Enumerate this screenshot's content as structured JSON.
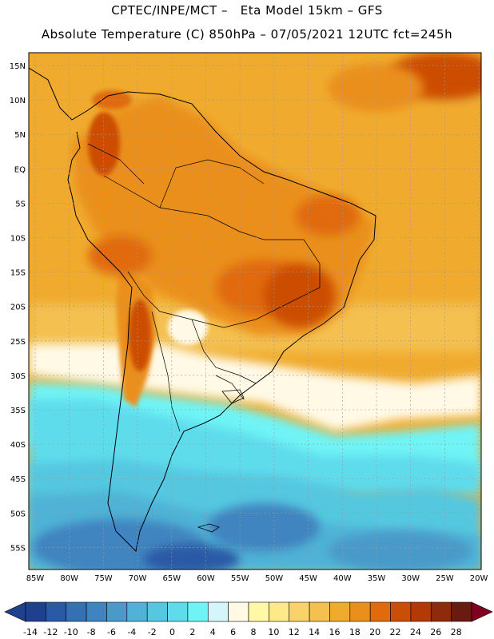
{
  "header": {
    "line1": "CPTEC/INPE/MCT –   Eta Model 15km – GFS",
    "line2": "Absolute Temperature (C) 850hPa – 07/05/2021 12UTC fct=245h"
  },
  "axes": {
    "lat_labels": [
      "15N",
      "10N",
      "5N",
      "EQ",
      "5S",
      "10S",
      "15S",
      "20S",
      "25S",
      "30S",
      "35S",
      "40S",
      "45S",
      "50S",
      "55S"
    ],
    "lon_labels": [
      "85W",
      "80W",
      "75W",
      "70W",
      "65W",
      "60W",
      "55W",
      "50W",
      "45W",
      "40W",
      "35W",
      "30W",
      "25W",
      "20W"
    ]
  },
  "colorbar": {
    "labels": [
      "-14",
      "-12",
      "-10",
      "-8",
      "-6",
      "-4",
      "-2",
      "0",
      "2",
      "4",
      "6",
      "8",
      "10",
      "12",
      "14",
      "16",
      "18",
      "20",
      "22",
      "24",
      "26",
      "28"
    ],
    "colors": [
      "#1f3f8f",
      "#2a5aa5",
      "#3470b2",
      "#3f84c0",
      "#4a9ac9",
      "#4fb2d6",
      "#55c8e0",
      "#5fdcec",
      "#6ff4f6",
      "#d4f6fb",
      "#fff9e6",
      "#fff9a5",
      "#fde98a",
      "#f9d36a",
      "#f4c04f",
      "#f0ab2e",
      "#ea8f1c",
      "#e06a0c",
      "#cc4e06",
      "#b33a05",
      "#8f2a0c",
      "#6b1a12"
    ],
    "min_label": "-14",
    "max_label": "28"
  }
}
